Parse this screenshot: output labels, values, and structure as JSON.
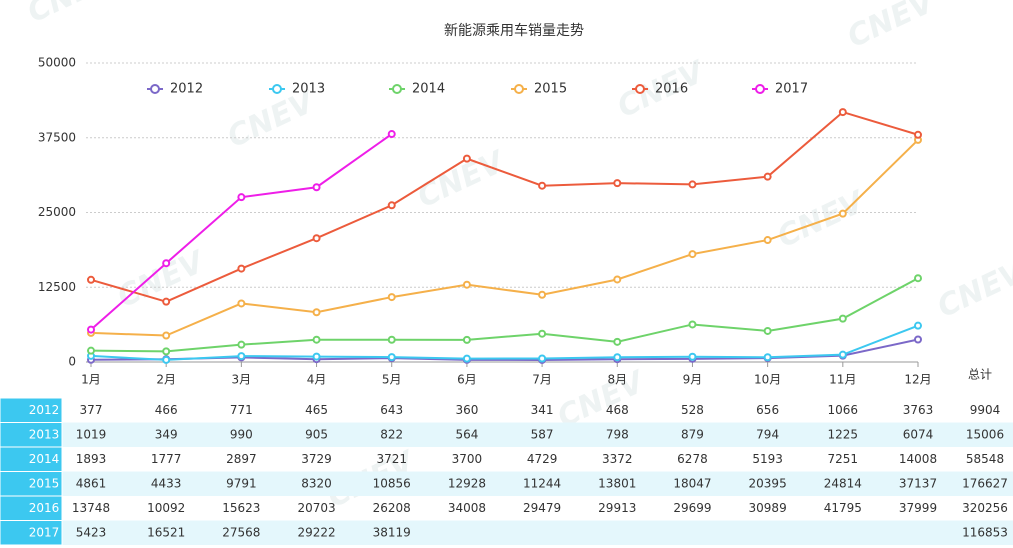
{
  "chart_data": {
    "type": "line",
    "title": "新能源乘用车销量走势",
    "watermark": "CNEV",
    "categories": [
      "1月",
      "2月",
      "3月",
      "4月",
      "5月",
      "6月",
      "7月",
      "8月",
      "9月",
      "10月",
      "11月",
      "12月"
    ],
    "ylim": [
      0,
      50000
    ],
    "yticks": [
      0,
      12500,
      25000,
      37500,
      50000
    ],
    "grid": true,
    "legend": "top",
    "total_label": "总计",
    "series": [
      {
        "name": "2012",
        "color": "#7b68c8",
        "values": [
          377,
          466,
          771,
          465,
          643,
          360,
          341,
          468,
          528,
          656,
          1066,
          3763
        ],
        "total": 9904
      },
      {
        "name": "2013",
        "color": "#3cc8f0",
        "values": [
          1019,
          349,
          990,
          905,
          822,
          564,
          587,
          798,
          879,
          794,
          1225,
          6074
        ],
        "total": 15006
      },
      {
        "name": "2014",
        "color": "#6ed36a",
        "values": [
          1893,
          1777,
          2897,
          3729,
          3721,
          3700,
          4729,
          3372,
          6278,
          5193,
          7251,
          14008
        ],
        "total": 58548
      },
      {
        "name": "2015",
        "color": "#f5b04a",
        "values": [
          4861,
          4433,
          9791,
          8320,
          10856,
          12928,
          11244,
          13801,
          18047,
          20395,
          24814,
          37137
        ],
        "total": 176627
      },
      {
        "name": "2016",
        "color": "#ec5b3c",
        "values": [
          13748,
          10092,
          15623,
          20703,
          26208,
          34008,
          29479,
          29913,
          29699,
          30989,
          41795,
          37999
        ],
        "total": 320256
      },
      {
        "name": "2017",
        "color": "#ee1ee8",
        "values": [
          5423,
          16521,
          27568,
          29222,
          38119,
          null,
          null,
          null,
          null,
          null,
          null,
          null
        ],
        "total": 116853
      }
    ]
  }
}
